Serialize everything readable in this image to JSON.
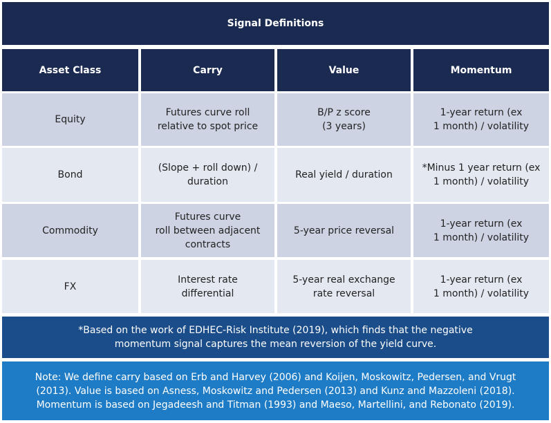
{
  "title": "Signal Definitions",
  "table": {
    "header": [
      "Asset Class",
      "Carry",
      "Value",
      "Momentum"
    ],
    "rows": [
      [
        [
          "Equity"
        ],
        [
          "Futures curve roll",
          "relative to spot price"
        ],
        [
          "B/P z score",
          "(3 years)"
        ],
        [
          "1-year return (ex",
          "1 month) / volatility"
        ]
      ],
      [
        [
          "Bond"
        ],
        [
          "(Slope + roll down) /",
          "duration"
        ],
        [
          "Real yield / duration"
        ],
        [
          "*Minus 1 year return (ex",
          "1 month) / volatility"
        ]
      ],
      [
        [
          "Commodity"
        ],
        [
          "Futures curve",
          "roll between adjacent",
          "contracts"
        ],
        [
          "5-year price reversal"
        ],
        [
          "1-year return (ex",
          "1 month) / volatility"
        ]
      ],
      [
        [
          "FX"
        ],
        [
          "Interest rate",
          "differential"
        ],
        [
          "5-year real exchange",
          "rate reversal"
        ],
        [
          "1-year return (ex",
          "1 month) / volatility"
        ]
      ]
    ]
  },
  "footnote": [
    "*Based on the work of EDHEC-Risk Institute (2019), which finds that the negative",
    "momentum signal captures the mean reversion of the yield curve."
  ],
  "note": [
    "Note: We define carry based on Erb and Harvey (2006) and Koijen, Moskowitz, Pedersen, and Vrugt",
    "(2013). Value is based on Asness, Moskowitz and Pedersen (2013) and Kunz and Mazzoleni (2018).",
    "Momentum is based on Jegadeesh and Titman (1993) and Maeso, Martellini, and Rebonato (2019)."
  ]
}
